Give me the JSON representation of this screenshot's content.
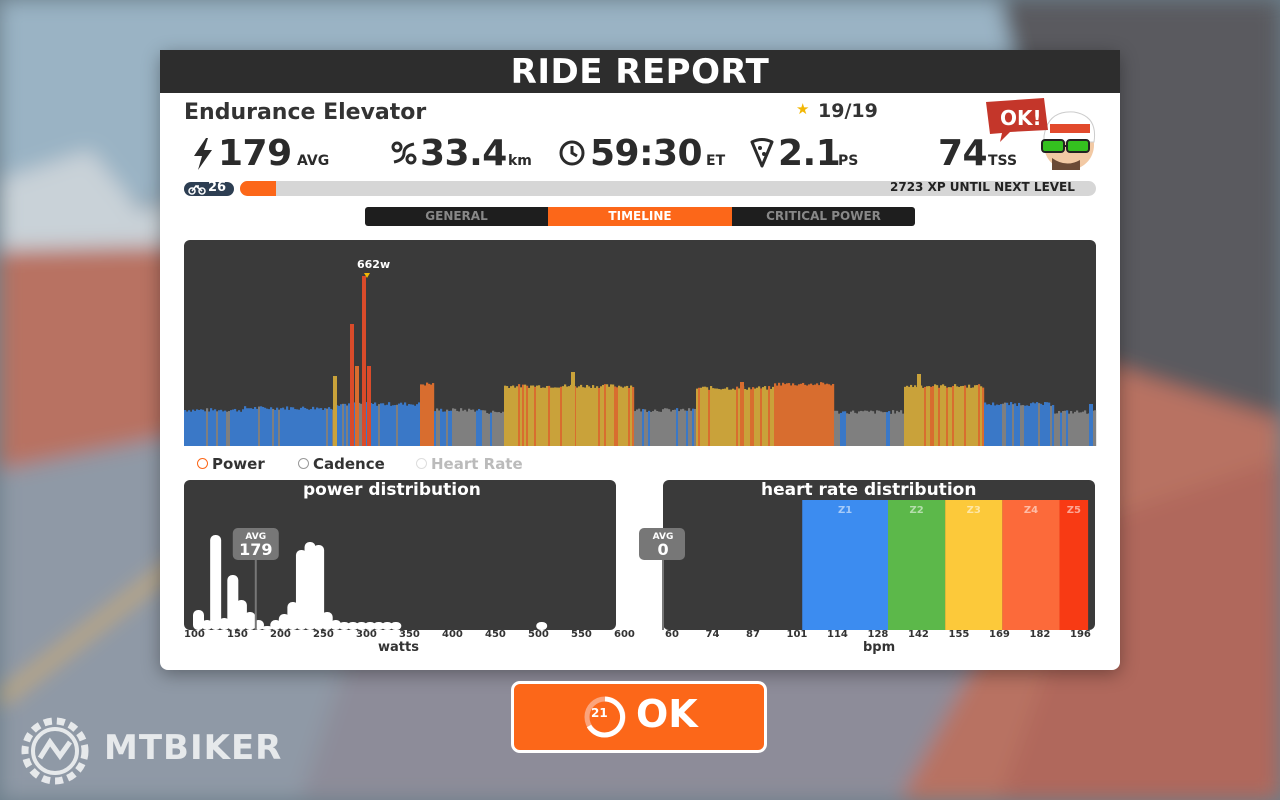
{
  "panel": {
    "title": "RIDE REPORT",
    "workout_name": "Endurance Elevator",
    "stars": "19/19",
    "speech_bubble": "OK!"
  },
  "stats": {
    "power": {
      "value": "179",
      "unit": "AVG",
      "icon": "lightning-icon"
    },
    "distance": {
      "value": "33.4",
      "unit": "km",
      "icon": "distance-icon"
    },
    "time": {
      "value": "59:30",
      "unit": "ET",
      "icon": "clock-icon"
    },
    "pizza": {
      "value": "2.1",
      "unit": "PS",
      "icon": "pizza-icon"
    },
    "tss": {
      "value": "74",
      "unit": "TSS"
    }
  },
  "level": {
    "number": "26",
    "xp_text": "2723 XP UNTIL NEXT LEVEL",
    "progress": 0.03
  },
  "tabs": [
    {
      "label": "GENERAL",
      "active": false
    },
    {
      "label": "TIMELINE",
      "active": true
    },
    {
      "label": "CRITICAL POWER",
      "active": false
    }
  ],
  "timeline": {
    "peak_label": "662w",
    "legend": [
      {
        "label": "Power",
        "selected": true,
        "color": "#333333"
      },
      {
        "label": "Cadence",
        "selected": false,
        "color": "#333333"
      },
      {
        "label": "Heart Rate",
        "selected": false,
        "color": "#bbbbbb"
      }
    ],
    "zone_colors": {
      "grey": "#7f7f7f",
      "blue": "#3a78c7",
      "green": "#5ea34e",
      "yellow": "#c9a23a",
      "orange": "#d86d2f",
      "red": "#d94b2a"
    }
  },
  "power_distribution": {
    "title": "power distribution",
    "axis_label": "watts",
    "avg_label": "AVG",
    "avg_value": "179",
    "ticks": [
      "100",
      "150",
      "200",
      "250",
      "300",
      "350",
      "400",
      "450",
      "500",
      "550",
      "600"
    ]
  },
  "hr_distribution": {
    "title": "heart rate distribution",
    "axis_label": "bpm",
    "avg_label": "AVG",
    "avg_value": "0",
    "ticks": [
      "60",
      "74",
      "87",
      "101",
      "114",
      "128",
      "142",
      "155",
      "169",
      "182",
      "196"
    ],
    "zones": [
      {
        "label": "Z1",
        "from": 101,
        "to": 128,
        "color": "#3c8cf0"
      },
      {
        "label": "Z2",
        "from": 128,
        "to": 146,
        "color": "#5cb84a"
      },
      {
        "label": "Z3",
        "from": 146,
        "to": 164,
        "color": "#fcc93a"
      },
      {
        "label": "Z4",
        "from": 164,
        "to": 182,
        "color": "#fc6a3a"
      },
      {
        "label": "Z5",
        "from": 182,
        "to": 191,
        "color": "#f83a14"
      }
    ]
  },
  "chart_data": [
    {
      "type": "bar",
      "title": "power distribution",
      "xlabel": "watts",
      "ylabel": "",
      "xlim": [
        100,
        600
      ],
      "x": [
        100,
        110,
        120,
        130,
        140,
        150,
        160,
        170,
        180,
        190,
        200,
        210,
        220,
        230,
        240,
        250,
        260,
        270,
        280,
        290,
        300,
        310,
        320,
        330,
        500
      ],
      "values": [
        20,
        10,
        95,
        12,
        55,
        30,
        18,
        10,
        4,
        10,
        16,
        28,
        80,
        88,
        85,
        18,
        10,
        8,
        8,
        8,
        8,
        8,
        8,
        8,
        8
      ],
      "avg": 179
    },
    {
      "type": "bar",
      "title": "heart rate distribution",
      "xlabel": "bpm",
      "xlim": [
        60,
        196
      ],
      "avg": 0
    }
  ],
  "ok_button": {
    "label": "OK",
    "countdown": "21"
  },
  "watermark": {
    "text": "MTBIKER"
  }
}
